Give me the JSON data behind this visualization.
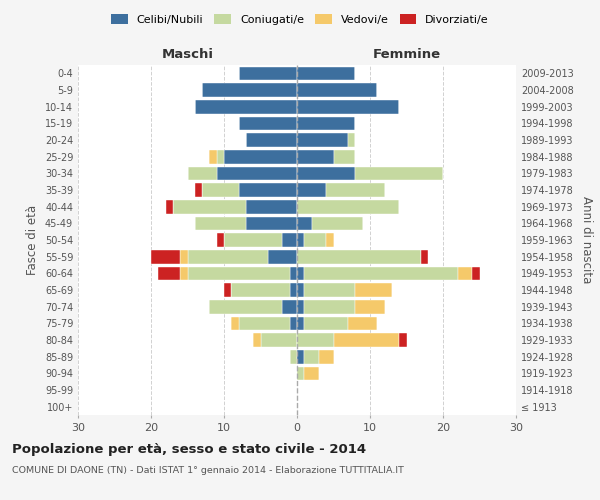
{
  "age_groups": [
    "100+",
    "95-99",
    "90-94",
    "85-89",
    "80-84",
    "75-79",
    "70-74",
    "65-69",
    "60-64",
    "55-59",
    "50-54",
    "45-49",
    "40-44",
    "35-39",
    "30-34",
    "25-29",
    "20-24",
    "15-19",
    "10-14",
    "5-9",
    "0-4"
  ],
  "birth_years": [
    "≤ 1913",
    "1914-1918",
    "1919-1923",
    "1924-1928",
    "1929-1933",
    "1934-1938",
    "1939-1943",
    "1944-1948",
    "1949-1953",
    "1954-1958",
    "1959-1963",
    "1964-1968",
    "1969-1973",
    "1974-1978",
    "1979-1983",
    "1984-1988",
    "1989-1993",
    "1994-1998",
    "1999-2003",
    "2004-2008",
    "2009-2013"
  ],
  "maschi": {
    "celibi": [
      0,
      0,
      0,
      0,
      0,
      1,
      2,
      1,
      1,
      4,
      2,
      7,
      7,
      8,
      11,
      10,
      7,
      8,
      14,
      13,
      8
    ],
    "coniugati": [
      0,
      0,
      0,
      1,
      5,
      7,
      10,
      8,
      14,
      11,
      8,
      7,
      10,
      5,
      4,
      1,
      0,
      0,
      0,
      0,
      0
    ],
    "vedovi": [
      0,
      0,
      0,
      0,
      1,
      1,
      0,
      0,
      1,
      1,
      0,
      0,
      0,
      0,
      0,
      1,
      0,
      0,
      0,
      0,
      0
    ],
    "divorziati": [
      0,
      0,
      0,
      0,
      0,
      0,
      0,
      1,
      3,
      4,
      1,
      0,
      1,
      1,
      0,
      0,
      0,
      0,
      0,
      0,
      0
    ]
  },
  "femmine": {
    "nubili": [
      0,
      0,
      0,
      1,
      0,
      1,
      1,
      1,
      1,
      0,
      1,
      2,
      0,
      4,
      8,
      5,
      7,
      8,
      14,
      11,
      8
    ],
    "coniugate": [
      0,
      0,
      1,
      2,
      5,
      6,
      7,
      7,
      21,
      17,
      3,
      7,
      14,
      8,
      12,
      3,
      1,
      0,
      0,
      0,
      0
    ],
    "vedove": [
      0,
      0,
      2,
      2,
      9,
      4,
      4,
      5,
      2,
      0,
      1,
      0,
      0,
      0,
      0,
      0,
      0,
      0,
      0,
      0,
      0
    ],
    "divorziate": [
      0,
      0,
      0,
      0,
      1,
      0,
      0,
      0,
      1,
      1,
      0,
      0,
      0,
      0,
      0,
      0,
      0,
      0,
      0,
      0,
      0
    ]
  },
  "colors": {
    "celibi": "#3d6f9e",
    "coniugati": "#c5d9a0",
    "vedovi": "#f5c96a",
    "divorziati": "#cc2222"
  },
  "title": "Popolazione per età, sesso e stato civile - 2014",
  "subtitle": "COMUNE DI DAONE (TN) - Dati ISTAT 1° gennaio 2014 - Elaborazione TUTTITALIA.IT",
  "xlabel_left": "Maschi",
  "xlabel_right": "Femmine",
  "ylabel_left": "Fasce di età",
  "ylabel_right": "Anni di nascita",
  "xlim": 30,
  "bg_color": "#f5f5f5",
  "plot_bg": "#ffffff",
  "legend_labels": [
    "Celibi/Nubili",
    "Coniugati/e",
    "Vedovi/e",
    "Divorziati/e"
  ]
}
